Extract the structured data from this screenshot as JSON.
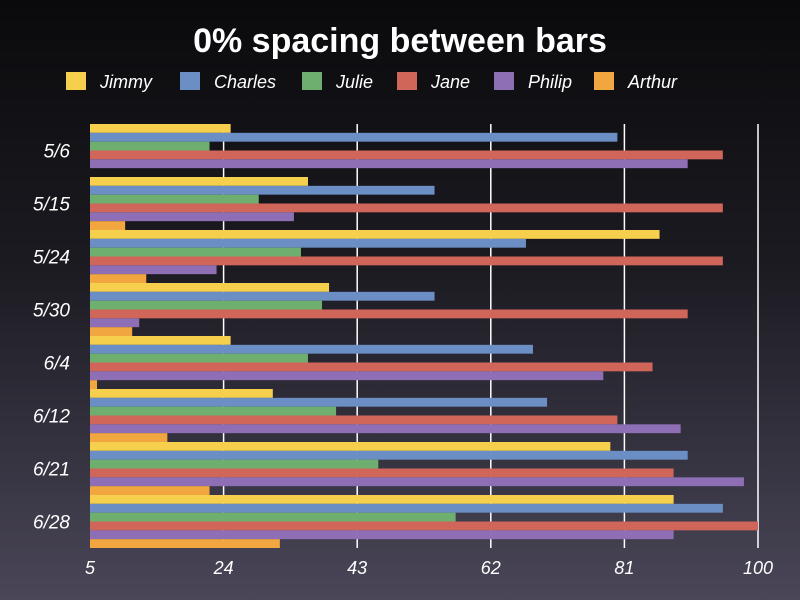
{
  "chart_data": {
    "type": "bar",
    "orientation": "horizontal",
    "title": "0% spacing between bars",
    "xlabel": "",
    "ylabel": "",
    "categories": [
      "5/6",
      "5/15",
      "5/24",
      "5/30",
      "6/4",
      "6/12",
      "6/21",
      "6/28"
    ],
    "xlim": [
      5,
      100
    ],
    "xticks": [
      "5",
      "24",
      "43",
      "62",
      "81",
      "100"
    ],
    "grid": true,
    "legend_position": "top",
    "series": [
      {
        "name": "Jimmy",
        "color": "#f6d04d",
        "values": [
          25,
          36,
          86,
          39,
          25,
          31,
          79,
          88
        ]
      },
      {
        "name": "Charles",
        "color": "#6b8fc5",
        "values": [
          80,
          54,
          67,
          54,
          68,
          70,
          90,
          95
        ]
      },
      {
        "name": "Julie",
        "color": "#6eae6e",
        "values": [
          22,
          29,
          35,
          38,
          36,
          40,
          46,
          57
        ]
      },
      {
        "name": "Jane",
        "color": "#d0655a",
        "values": [
          95,
          95,
          95,
          90,
          85,
          80,
          88,
          100
        ]
      },
      {
        "name": "Philip",
        "color": "#8e6fb5",
        "values": [
          90,
          34,
          23,
          12,
          78,
          89,
          98,
          88
        ]
      },
      {
        "name": "Arthur",
        "color": "#f2a640",
        "values": [
          5,
          10,
          13,
          11,
          6,
          16,
          22,
          32
        ]
      }
    ]
  }
}
